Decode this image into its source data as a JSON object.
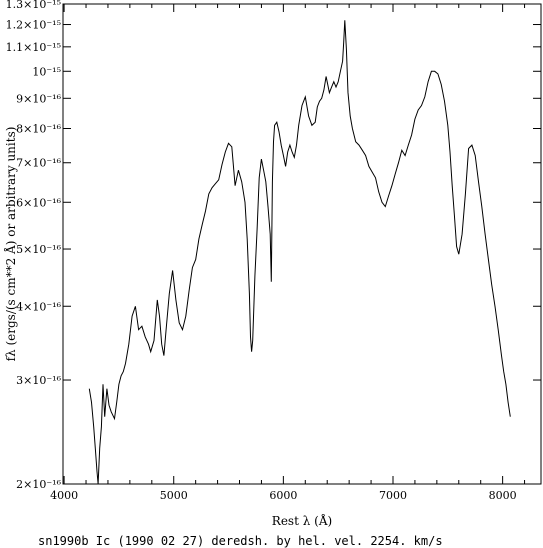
{
  "chart_data": {
    "type": "line",
    "title": "",
    "caption": "sn1990b Ic (1990 02 27) deredsh. by hel. vel.  2254. km/s",
    "xlabel": "Rest λ (Å)",
    "ylabel": "fλ (ergs/(s cm**2 Å) or arbitrary units)",
    "xlim": [
      3990,
      8350
    ],
    "ylim": [
      2e-16,
      1.3e-15
    ],
    "yscale": "log",
    "x_ticks": [
      4000,
      5000,
      6000,
      7000,
      8000
    ],
    "x_tick_labels": [
      "4000",
      "5000",
      "6000",
      "7000",
      "8000"
    ],
    "y_ticks": [
      2e-16,
      3e-16,
      4e-16,
      5e-16,
      6e-16,
      7e-16,
      8e-16,
      9e-16,
      1e-15,
      1.1e-15,
      1.2e-15,
      1.3e-15
    ],
    "y_tick_labels": [
      "2×10⁻¹⁶",
      "3×10⁻¹⁶",
      "4×10⁻¹⁶",
      "5×10⁻¹⁶",
      "6×10⁻¹⁶",
      "7×10⁻¹⁶",
      "8×10⁻¹⁶",
      "9×10⁻¹⁶",
      "10⁻¹⁵",
      "1.1×10⁻¹⁵",
      "1.2×10⁻¹⁵",
      "1.3×10⁻¹⁵"
    ],
    "grid": false,
    "series": [
      {
        "color": "#000000",
        "x": [
          4230,
          4250,
          4270,
          4285,
          4300,
          4310,
          4325,
          4340,
          4355,
          4370,
          4390,
          4410,
          4430,
          4460,
          4480,
          4500,
          4520,
          4540,
          4560,
          4590,
          4620,
          4650,
          4680,
          4710,
          4740,
          4770,
          4790,
          4820,
          4850,
          4870,
          4890,
          4910,
          4930,
          4960,
          4990,
          5020,
          5050,
          5080,
          5110,
          5140,
          5170,
          5200,
          5230,
          5260,
          5290,
          5320,
          5350,
          5380,
          5410,
          5440,
          5470,
          5500,
          5530,
          5560,
          5590,
          5620,
          5650,
          5670,
          5690,
          5700,
          5710,
          5720,
          5740,
          5760,
          5780,
          5800,
          5820,
          5840,
          5860,
          5880,
          5890,
          5900,
          5910,
          5920,
          5940,
          5960,
          5980,
          6000,
          6020,
          6040,
          6060,
          6080,
          6100,
          6120,
          6140,
          6170,
          6200,
          6230,
          6260,
          6290,
          6310,
          6330,
          6350,
          6370,
          6390,
          6420,
          6440,
          6460,
          6480,
          6500,
          6520,
          6540,
          6550,
          6560,
          6575,
          6590,
          6610,
          6630,
          6660,
          6690,
          6720,
          6750,
          6780,
          6810,
          6840,
          6870,
          6900,
          6930,
          6960,
          6990,
          7020,
          7050,
          7080,
          7110,
          7140,
          7170,
          7200,
          7230,
          7260,
          7290,
          7320,
          7350,
          7380,
          7410,
          7440,
          7470,
          7500,
          7520,
          7540,
          7560,
          7580,
          7600,
          7630,
          7660,
          7690,
          7720,
          7750,
          7780,
          7810,
          7840,
          7870,
          7900,
          7930,
          7960,
          7990,
          8010,
          8030,
          8050,
          8070
        ],
        "y": [
          2.9e-16,
          2.75e-16,
          2.5e-16,
          2.3e-16,
          2.1e-16,
          2e-16,
          2.3e-16,
          2.5e-16,
          2.95e-16,
          2.6e-16,
          2.9e-16,
          2.72e-16,
          2.65e-16,
          2.58e-16,
          2.75e-16,
          2.95e-16,
          3.05e-16,
          3.1e-16,
          3.2e-16,
          3.45e-16,
          3.85e-16,
          4e-16,
          3.65e-16,
          3.7e-16,
          3.55e-16,
          3.45e-16,
          3.35e-16,
          3.5e-16,
          4.1e-16,
          3.85e-16,
          3.45e-16,
          3.3e-16,
          3.65e-16,
          4.2e-16,
          4.6e-16,
          4.1e-16,
          3.75e-16,
          3.65e-16,
          3.85e-16,
          4.25e-16,
          4.65e-16,
          4.8e-16,
          5.2e-16,
          5.5e-16,
          5.8e-16,
          6.2e-16,
          6.35e-16,
          6.45e-16,
          6.55e-16,
          6.95e-16,
          7.3e-16,
          7.55e-16,
          7.45e-16,
          6.4e-16,
          6.8e-16,
          6.5e-16,
          6e-16,
          5.2e-16,
          4.2e-16,
          3.55e-16,
          3.35e-16,
          3.5e-16,
          4.5e-16,
          5.4e-16,
          6.6e-16,
          7.1e-16,
          6.8e-16,
          6.5e-16,
          5.9e-16,
          5.3e-16,
          4.4e-16,
          6.5e-16,
          7.6e-16,
          8.1e-16,
          8.2e-16,
          7.9e-16,
          7.5e-16,
          7.2e-16,
          6.9e-16,
          7.3e-16,
          7.5e-16,
          7.3e-16,
          7.15e-16,
          7.5e-16,
          8.1e-16,
          8.75e-16,
          9.05e-16,
          8.4e-16,
          8.1e-16,
          8.2e-16,
          8.7e-16,
          8.9e-16,
          9e-16,
          9.3e-16,
          9.8e-16,
          9.2e-16,
          9.4e-16,
          9.6e-16,
          9.4e-16,
          9.6e-16,
          1e-15,
          1.04e-15,
          1.12e-15,
          1.22e-15,
          1.09e-15,
          9.2e-16,
          8.4e-16,
          8e-16,
          7.6e-16,
          7.5e-16,
          7.35e-16,
          7.2e-16,
          6.9e-16,
          6.75e-16,
          6.6e-16,
          6.25e-16,
          6e-16,
          5.9e-16,
          6.15e-16,
          6.4e-16,
          6.7e-16,
          7e-16,
          7.35e-16,
          7.2e-16,
          7.5e-16,
          7.8e-16,
          8.3e-16,
          8.6e-16,
          8.75e-16,
          9.05e-16,
          9.6e-16,
          1e-15,
          1e-15,
          9.9e-16,
          9.5e-16,
          8.9e-16,
          8.1e-16,
          7.3e-16,
          6.4e-16,
          5.7e-16,
          5.05e-16,
          4.9e-16,
          5.3e-16,
          6.2e-16,
          7.4e-16,
          7.5e-16,
          7.2e-16,
          6.5e-16,
          5.9e-16,
          5.3e-16,
          4.8e-16,
          4.35e-16,
          4e-16,
          3.65e-16,
          3.3e-16,
          3.1e-16,
          2.95e-16,
          2.75e-16,
          2.6e-16
        ]
      }
    ]
  }
}
